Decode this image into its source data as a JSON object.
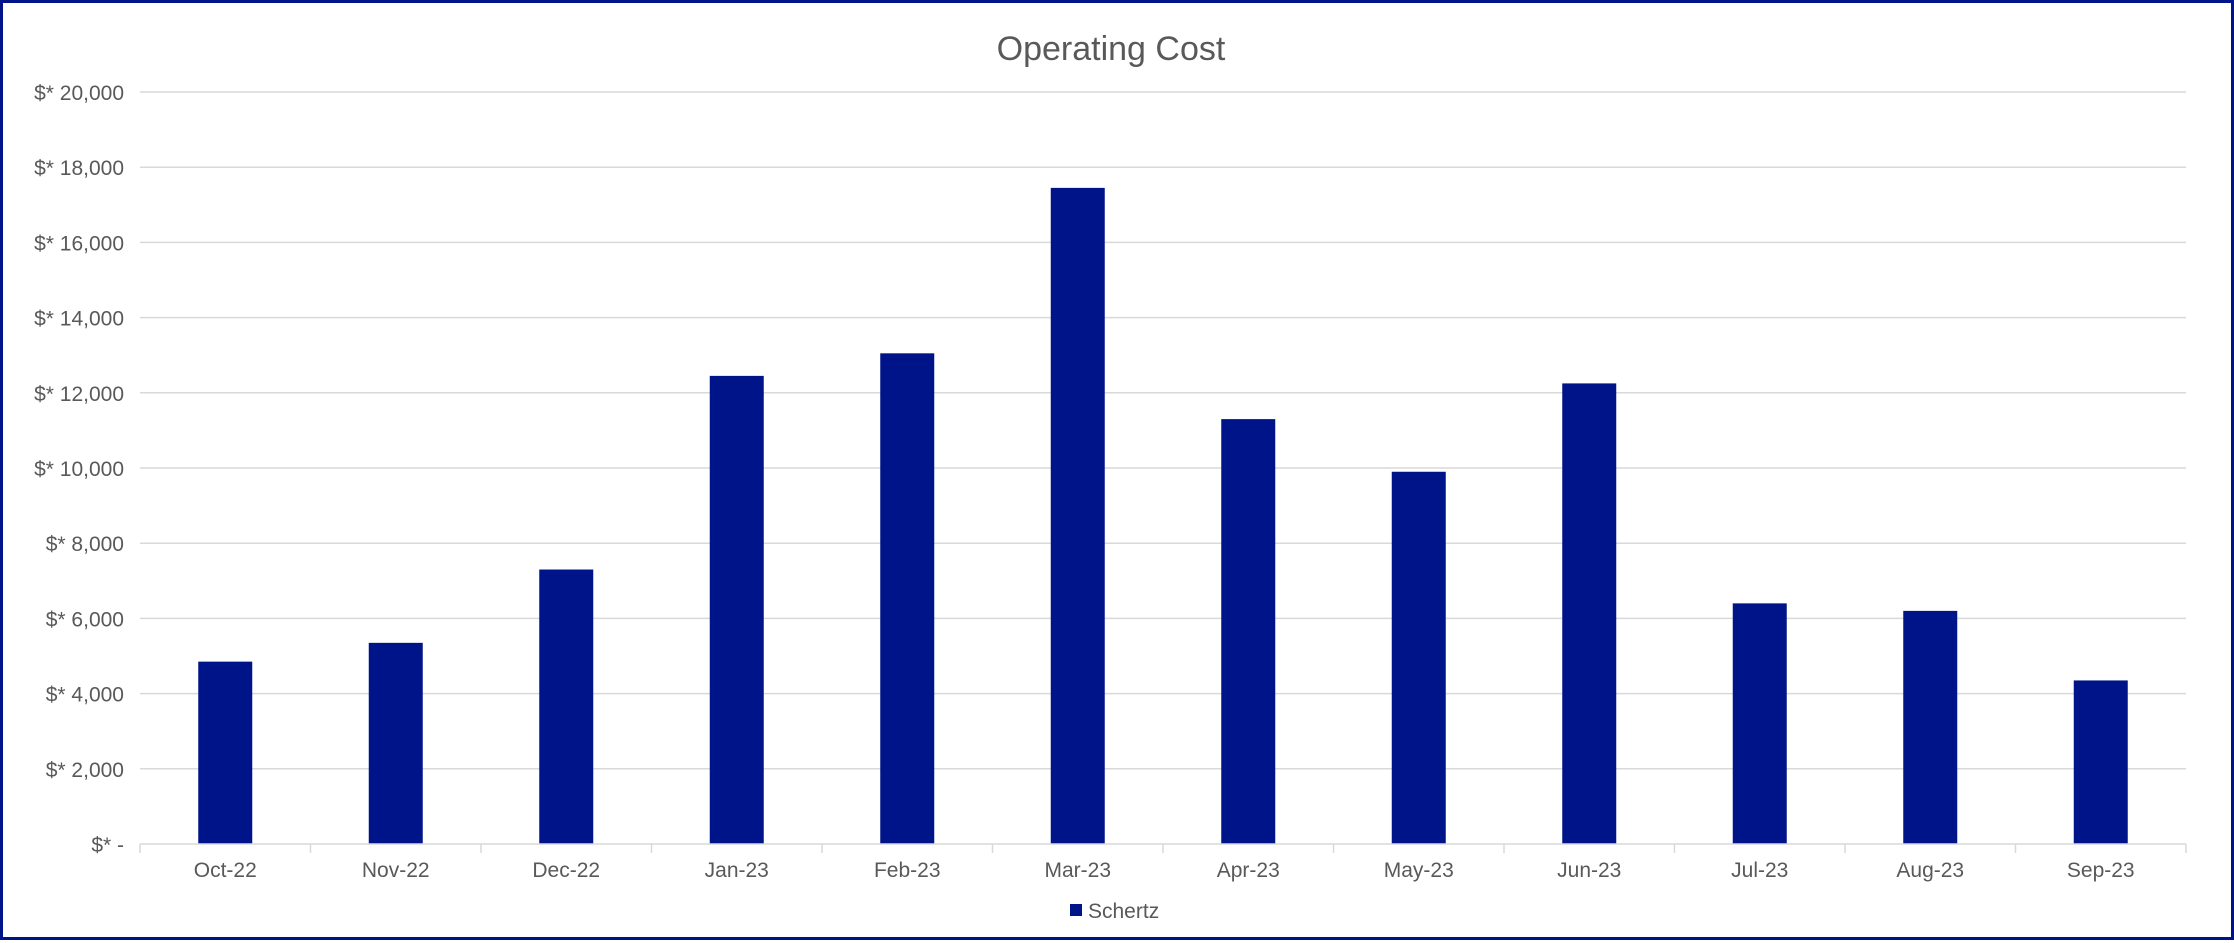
{
  "chart_data": {
    "type": "bar",
    "title": "Operating Cost",
    "xlabel": "",
    "ylabel": "",
    "categories": [
      "Oct-22",
      "Nov-22",
      "Dec-22",
      "Jan-23",
      "Feb-23",
      "Mar-23",
      "Apr-23",
      "May-23",
      "Jun-23",
      "Jul-23",
      "Aug-23",
      "Sep-23"
    ],
    "series": [
      {
        "name": "Schertz",
        "values": [
          4850,
          5350,
          7300,
          12450,
          13050,
          17450,
          11300,
          9900,
          12250,
          6400,
          6200,
          4350
        ],
        "color": "#001489"
      }
    ],
    "ylim": [
      0,
      20000
    ],
    "y_ticks": [
      0,
      2000,
      4000,
      6000,
      8000,
      10000,
      12000,
      14000,
      16000,
      18000,
      20000
    ],
    "y_tick_labels": [
      "$* -",
      "$* 2,000",
      "$* 4,000",
      "$* 6,000",
      "$* 8,000",
      "$* 10,000",
      "$* 12,000",
      "$* 14,000",
      "$* 16,000",
      "$* 18,000",
      "$* 20,000"
    ],
    "grid": true,
    "legend_position": "bottom-center",
    "colors": {
      "frame_border": "#001489",
      "gridline": "#d9d9d9",
      "text": "#595959"
    }
  }
}
